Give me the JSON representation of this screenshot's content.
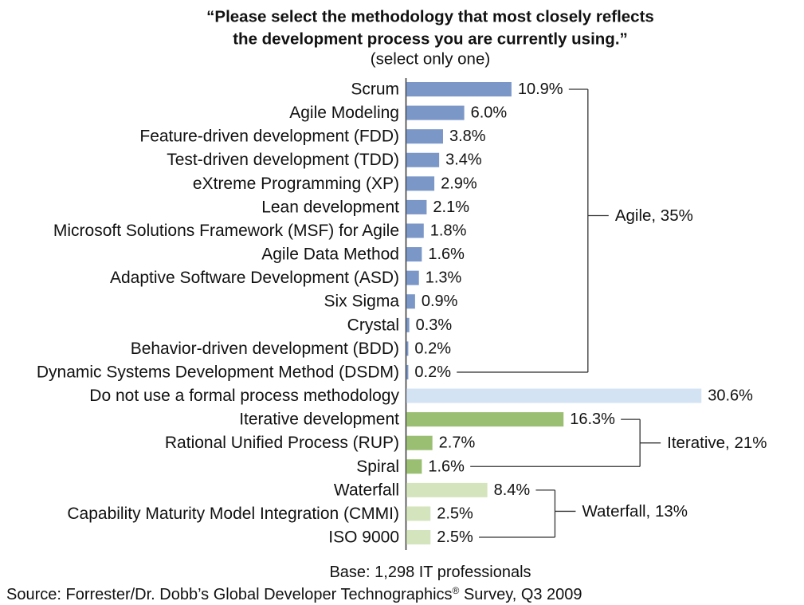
{
  "chart_data": {
    "type": "bar",
    "orientation": "horizontal",
    "title_lines": [
      "“Please select the methodology that most closely reflects",
      "the development process you are currently using.”"
    ],
    "subtitle": "(select only one)",
    "categories": [
      "Scrum",
      "Agile Modeling",
      "Feature-driven development (FDD)",
      "Test-driven development (TDD)",
      "eXtreme Programming (XP)",
      "Lean development",
      "Microsoft Solutions Framework (MSF) for Agile",
      "Agile Data Method",
      "Adaptive Software Development (ASD)",
      "Six Sigma",
      "Crystal",
      "Behavior-driven development (BDD)",
      "Dynamic Systems Development Method (DSDM)",
      "Do not use a formal process methodology",
      "Iterative development",
      "Rational Unified Process (RUP)",
      "Spiral",
      "Waterfall",
      "Capability Maturity Model Integration (CMMI)",
      "ISO 9000"
    ],
    "values": [
      10.9,
      6.0,
      3.8,
      3.4,
      2.9,
      2.1,
      1.8,
      1.6,
      1.3,
      0.9,
      0.3,
      0.2,
      0.2,
      30.6,
      16.3,
      2.7,
      1.6,
      8.4,
      2.5,
      2.5
    ],
    "data_labels": [
      "10.9%",
      "6.0%",
      "3.8%",
      "3.4%",
      "2.9%",
      "2.1%",
      "1.8%",
      "1.6%",
      "1.3%",
      "0.9%",
      "0.3%",
      "0.2%",
      "0.2%",
      "30.6%",
      "16.3%",
      "2.7%",
      "1.6%",
      "8.4%",
      "2.5%",
      "2.5%"
    ],
    "bar_group": [
      0,
      0,
      0,
      0,
      0,
      0,
      0,
      0,
      0,
      0,
      0,
      0,
      0,
      1,
      2,
      2,
      2,
      3,
      3,
      3
    ],
    "bar_groups": [
      {
        "label": "Agile, 35%",
        "color": "#7b97c8"
      },
      {
        "color": "#d4e3f4"
      },
      {
        "label": "Iterative, 21%",
        "color": "#9abf72"
      },
      {
        "label": "Waterfall, 13%",
        "color": "#d4e4bd"
      }
    ],
    "grid": false,
    "base_note": "Base: 1,298 IT professionals",
    "source": {
      "text": "Source: Forrester/Dr. Dobb’s Global Developer Technographics",
      "mark": "®",
      "text_after": " Survey, Q3 2009"
    }
  }
}
